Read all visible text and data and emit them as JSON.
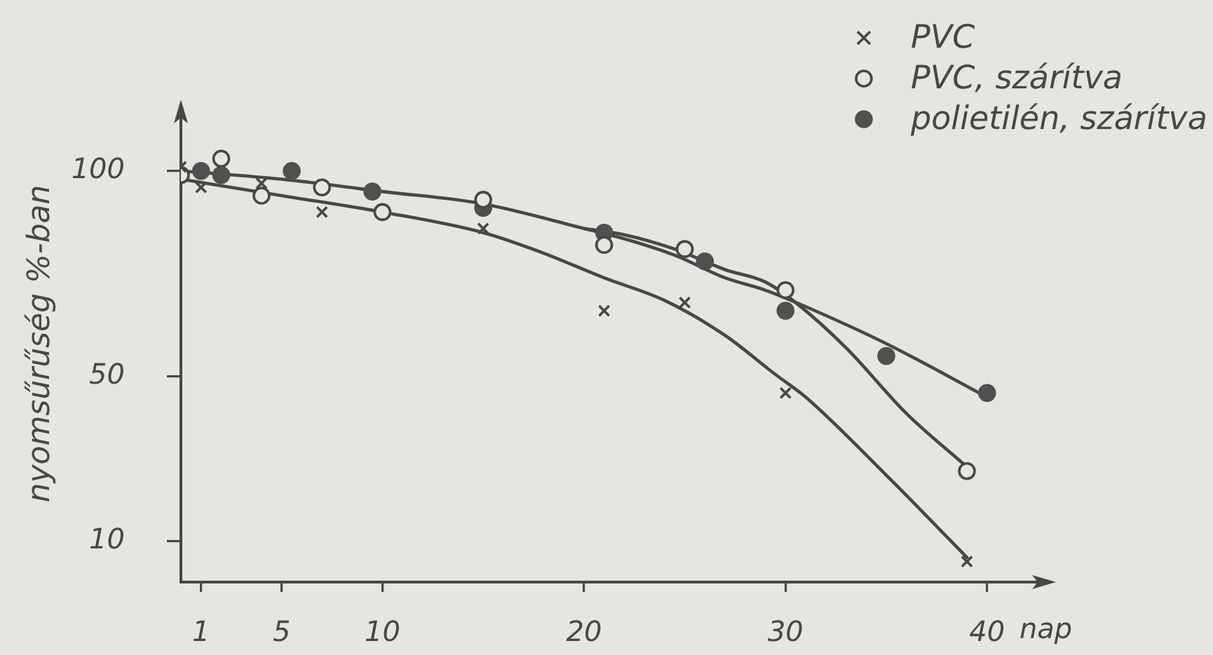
{
  "chart_data": {
    "type": "scatter",
    "xlabel": "nap",
    "ylabel": "nyomsűrűség %-ban",
    "xlim": [
      0,
      43
    ],
    "ylim": [
      0,
      116
    ],
    "xticks": [
      1,
      5,
      10,
      20,
      30,
      40
    ],
    "yticks": [
      10,
      50,
      100
    ],
    "grid": false,
    "legend": "top right",
    "series": [
      {
        "name": "PVC",
        "color": "#474747",
        "marker": "cross",
        "x": [
          0,
          1,
          4,
          7,
          15,
          21,
          25,
          30,
          39
        ],
        "values": [
          101,
          96,
          97,
          90,
          86,
          66,
          68,
          46,
          5
        ]
      },
      {
        "name": "PVC, szárítva",
        "color": "#474747",
        "marker": "circle-open",
        "x": [
          0,
          2,
          4,
          7,
          10,
          15,
          21,
          25,
          30,
          39
        ],
        "values": [
          99,
          103,
          94,
          96,
          90,
          93,
          82,
          81,
          71,
          27
        ]
      },
      {
        "name": "polietilén, szárítva",
        "color": "#505050",
        "marker": "circle",
        "x": [
          1,
          2,
          5.5,
          9.5,
          15,
          21,
          26,
          30,
          35,
          40
        ],
        "values": [
          100,
          99,
          100,
          95,
          91,
          85,
          78,
          66,
          55,
          46
        ]
      },
      {
        "type": "line",
        "color": "#474747",
        "marker": "none",
        "x": [
          0,
          5,
          10,
          15,
          18,
          21,
          24,
          27,
          29.5,
          31,
          35,
          39
        ],
        "values": [
          98,
          94,
          90,
          85,
          80,
          74,
          68.5,
          60,
          50.5,
          45,
          26,
          6
        ]
      },
      {
        "type": "line",
        "color": "#474747",
        "marker": "none",
        "x": [
          0,
          5,
          10,
          15,
          20,
          22,
          24.5,
          27,
          29,
          31,
          35,
          40
        ],
        "values": [
          100,
          98,
          95,
          92,
          86,
          83.5,
          79.5,
          74,
          71,
          67,
          58,
          45
        ]
      },
      {
        "type": "line",
        "color": "#474747",
        "marker": "none",
        "x": [
          20,
          22,
          24.5,
          27,
          29,
          30.5,
          33,
          36,
          39
        ],
        "values": [
          86,
          84.5,
          81,
          76,
          73,
          68,
          57,
          41,
          28
        ]
      }
    ]
  }
}
